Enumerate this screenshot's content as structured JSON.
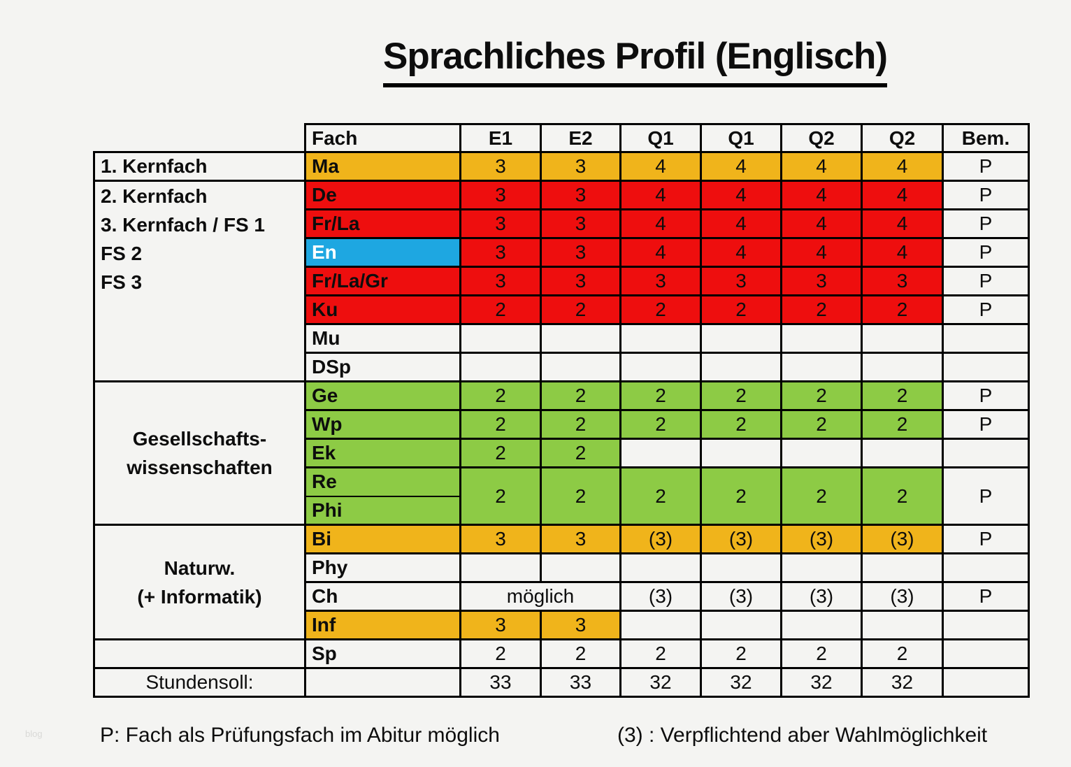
{
  "page": {
    "title": "Sprachliches Profil (Englisch)",
    "watermark": "blog",
    "footnotes": {
      "left": "P: Fach als Prüfungsfach im Abitur möglich",
      "right": "(3) : Verpflichtend aber Wahlmöglichkeit"
    }
  },
  "colors": {
    "orange": "#F0B41B",
    "red": "#EE0E0E",
    "green": "#8DCB45",
    "blue": "#1EA7E1",
    "border": "#000000",
    "page_bg": "#F4F4F2"
  },
  "legend": {
    "P": "Fach als Prüfungsfach im Abitur möglich",
    "(3)": "Verpflichtend aber Wahlmöglichkeit"
  },
  "table": {
    "column_ids": [
      "rowlabel",
      "fach",
      "e1",
      "e2",
      "q1a",
      "q1b",
      "q2a",
      "q2b",
      "bem"
    ],
    "header": {
      "name": "header",
      "cells": [
        {
          "ghost": 1
        },
        {
          "t": "Fach",
          "b": 1,
          "l": 1
        },
        {
          "t": "E1",
          "b": 1
        },
        {
          "t": "E2",
          "b": 1
        },
        {
          "t": "Q1",
          "b": 1
        },
        {
          "t": "Q1",
          "b": 1
        },
        {
          "t": "Q2",
          "b": 1
        },
        {
          "t": "Q2",
          "b": 1
        },
        {
          "t": "Bem.",
          "b": 1
        }
      ]
    },
    "rows": [
      {
        "name": "ma",
        "cells": [
          {
            "t": "1. Kernfach",
            "b": 1,
            "l": 1
          },
          {
            "t": "Ma",
            "b": 1,
            "l": 1,
            "bg": "orange"
          },
          {
            "t": "3",
            "bg": "orange"
          },
          {
            "t": "3",
            "bg": "orange"
          },
          {
            "t": "4",
            "bg": "orange"
          },
          {
            "t": "4",
            "bg": "orange"
          },
          {
            "t": "4",
            "bg": "orange"
          },
          {
            "t": "4",
            "bg": "orange"
          },
          {
            "t": "P"
          }
        ]
      },
      {
        "name": "de",
        "cells": [
          {
            "lines": [
              "2. Kernfach",
              "3. Kernfach / FS 1",
              "FS 2",
              "FS 3"
            ],
            "b": 1,
            "l": 1,
            "rs": 7,
            "vtop": 1
          },
          {
            "t": "De",
            "b": 1,
            "l": 1,
            "bg": "red"
          },
          {
            "t": "3",
            "bg": "red"
          },
          {
            "t": "3",
            "bg": "red"
          },
          {
            "t": "4",
            "bg": "red"
          },
          {
            "t": "4",
            "bg": "red"
          },
          {
            "t": "4",
            "bg": "red"
          },
          {
            "t": "4",
            "bg": "red"
          },
          {
            "t": "P"
          }
        ]
      },
      {
        "name": "frla",
        "cells": [
          {
            "t": "Fr/La",
            "b": 1,
            "l": 1,
            "bg": "red"
          },
          {
            "t": "3",
            "bg": "red"
          },
          {
            "t": "3",
            "bg": "red"
          },
          {
            "t": "4",
            "bg": "red"
          },
          {
            "t": "4",
            "bg": "red"
          },
          {
            "t": "4",
            "bg": "red"
          },
          {
            "t": "4",
            "bg": "red"
          },
          {
            "t": "P"
          }
        ]
      },
      {
        "name": "en",
        "cells": [
          {
            "t": "En",
            "b": 1,
            "l": 1,
            "bg": "blue",
            "white": 1
          },
          {
            "t": "3",
            "bg": "red"
          },
          {
            "t": "3",
            "bg": "red"
          },
          {
            "t": "4",
            "bg": "red"
          },
          {
            "t": "4",
            "bg": "red"
          },
          {
            "t": "4",
            "bg": "red"
          },
          {
            "t": "4",
            "bg": "red"
          },
          {
            "t": "P"
          }
        ]
      },
      {
        "name": "frlagr",
        "cells": [
          {
            "t": "Fr/La/Gr",
            "b": 1,
            "l": 1,
            "bg": "red"
          },
          {
            "t": "3",
            "bg": "red"
          },
          {
            "t": "3",
            "bg": "red"
          },
          {
            "t": "3",
            "bg": "red"
          },
          {
            "t": "3",
            "bg": "red"
          },
          {
            "t": "3",
            "bg": "red"
          },
          {
            "t": "3",
            "bg": "red"
          },
          {
            "t": "P"
          }
        ]
      },
      {
        "name": "ku",
        "cells": [
          {
            "t": "Ku",
            "b": 1,
            "l": 1,
            "bg": "red"
          },
          {
            "t": "2",
            "bg": "red"
          },
          {
            "t": "2",
            "bg": "red"
          },
          {
            "t": "2",
            "bg": "red"
          },
          {
            "t": "2",
            "bg": "red"
          },
          {
            "t": "2",
            "bg": "red"
          },
          {
            "t": "2",
            "bg": "red"
          },
          {
            "t": "P"
          }
        ]
      },
      {
        "name": "mu",
        "cells": [
          {
            "t": "Mu",
            "b": 1,
            "l": 1
          },
          {
            "t": ""
          },
          {
            "t": ""
          },
          {
            "t": ""
          },
          {
            "t": ""
          },
          {
            "t": ""
          },
          {
            "t": ""
          },
          {
            "t": ""
          }
        ]
      },
      {
        "name": "dsp",
        "cells": [
          {
            "t": "DSp",
            "b": 1,
            "l": 1
          },
          {
            "t": ""
          },
          {
            "t": ""
          },
          {
            "t": ""
          },
          {
            "t": ""
          },
          {
            "t": ""
          },
          {
            "t": ""
          },
          {
            "t": ""
          }
        ]
      },
      {
        "name": "ge",
        "cells": [
          {
            "lines": [
              "Gesellschafts-",
              "wissenschaften"
            ],
            "b": 1,
            "rs": 5,
            "linesCenter": 1
          },
          {
            "t": "Ge",
            "b": 1,
            "l": 1,
            "bg": "green"
          },
          {
            "t": "2",
            "bg": "green"
          },
          {
            "t": "2",
            "bg": "green"
          },
          {
            "t": "2",
            "bg": "green"
          },
          {
            "t": "2",
            "bg": "green"
          },
          {
            "t": "2",
            "bg": "green"
          },
          {
            "t": "2",
            "bg": "green"
          },
          {
            "t": "P"
          }
        ]
      },
      {
        "name": "wp",
        "cells": [
          {
            "t": "Wp",
            "b": 1,
            "l": 1,
            "bg": "green"
          },
          {
            "t": "2",
            "bg": "green"
          },
          {
            "t": "2",
            "bg": "green"
          },
          {
            "t": "2",
            "bg": "green"
          },
          {
            "t": "2",
            "bg": "green"
          },
          {
            "t": "2",
            "bg": "green"
          },
          {
            "t": "2",
            "bg": "green"
          },
          {
            "t": "P"
          }
        ]
      },
      {
        "name": "ek",
        "cells": [
          {
            "t": "Ek",
            "b": 1,
            "l": 1,
            "bg": "green"
          },
          {
            "t": "2",
            "bg": "green"
          },
          {
            "t": "2",
            "bg": "green"
          },
          {
            "t": ""
          },
          {
            "t": ""
          },
          {
            "t": ""
          },
          {
            "t": ""
          },
          {
            "t": ""
          }
        ]
      },
      {
        "name": "re",
        "cells": [
          {
            "t": "Re",
            "b": 1,
            "l": 1,
            "bg": "green",
            "thinB": 1
          },
          {
            "t": "2",
            "bg": "green",
            "rs": 2
          },
          {
            "t": "2",
            "bg": "green",
            "rs": 2
          },
          {
            "t": "2",
            "bg": "green",
            "rs": 2
          },
          {
            "t": "2",
            "bg": "green",
            "rs": 2
          },
          {
            "t": "2",
            "bg": "green",
            "rs": 2
          },
          {
            "t": "2",
            "bg": "green",
            "rs": 2
          },
          {
            "t": "P",
            "rs": 2
          }
        ]
      },
      {
        "name": "phi",
        "cells": [
          {
            "t": "Phi",
            "b": 1,
            "l": 1,
            "bg": "green",
            "thinT": 1
          }
        ]
      },
      {
        "name": "bi",
        "cells": [
          {
            "lines": [
              "Naturw.",
              "(+ Informatik)"
            ],
            "b": 1,
            "rs": 4,
            "linesCenter": 1
          },
          {
            "t": "Bi",
            "b": 1,
            "l": 1,
            "bg": "orange"
          },
          {
            "t": "3",
            "bg": "orange"
          },
          {
            "t": "3",
            "bg": "orange"
          },
          {
            "t": "(3)",
            "bg": "orange"
          },
          {
            "t": "(3)",
            "bg": "orange"
          },
          {
            "t": "(3)",
            "bg": "orange"
          },
          {
            "t": "(3)",
            "bg": "orange"
          },
          {
            "t": "P"
          }
        ]
      },
      {
        "name": "phy",
        "cells": [
          {
            "t": "Phy",
            "b": 1,
            "l": 1
          },
          {
            "t": ""
          },
          {
            "t": ""
          },
          {
            "t": ""
          },
          {
            "t": ""
          },
          {
            "t": ""
          },
          {
            "t": ""
          },
          {
            "t": ""
          }
        ]
      },
      {
        "name": "ch",
        "cells": [
          {
            "t": "Ch",
            "b": 1,
            "l": 1
          },
          {
            "t": "möglich",
            "cs": 2
          },
          {
            "t": "(3)"
          },
          {
            "t": "(3)"
          },
          {
            "t": "(3)"
          },
          {
            "t": "(3)"
          },
          {
            "t": "P"
          }
        ]
      },
      {
        "name": "inf",
        "cells": [
          {
            "t": "Inf",
            "b": 1,
            "l": 1,
            "bg": "orange"
          },
          {
            "t": "3",
            "bg": "orange"
          },
          {
            "t": "3",
            "bg": "orange"
          },
          {
            "t": ""
          },
          {
            "t": ""
          },
          {
            "t": ""
          },
          {
            "t": ""
          },
          {
            "t": ""
          }
        ]
      },
      {
        "name": "sp",
        "cells": [
          {
            "t": ""
          },
          {
            "t": "Sp",
            "b": 1,
            "l": 1
          },
          {
            "t": "2"
          },
          {
            "t": "2"
          },
          {
            "t": "2"
          },
          {
            "t": "2"
          },
          {
            "t": "2"
          },
          {
            "t": "2"
          },
          {
            "t": ""
          }
        ]
      },
      {
        "name": "stundensoll",
        "cells": [
          {
            "t": "Stundensoll:"
          },
          {
            "t": ""
          },
          {
            "t": "33"
          },
          {
            "t": "33"
          },
          {
            "t": "32"
          },
          {
            "t": "32"
          },
          {
            "t": "32"
          },
          {
            "t": "32"
          },
          {
            "t": ""
          }
        ]
      }
    ]
  }
}
